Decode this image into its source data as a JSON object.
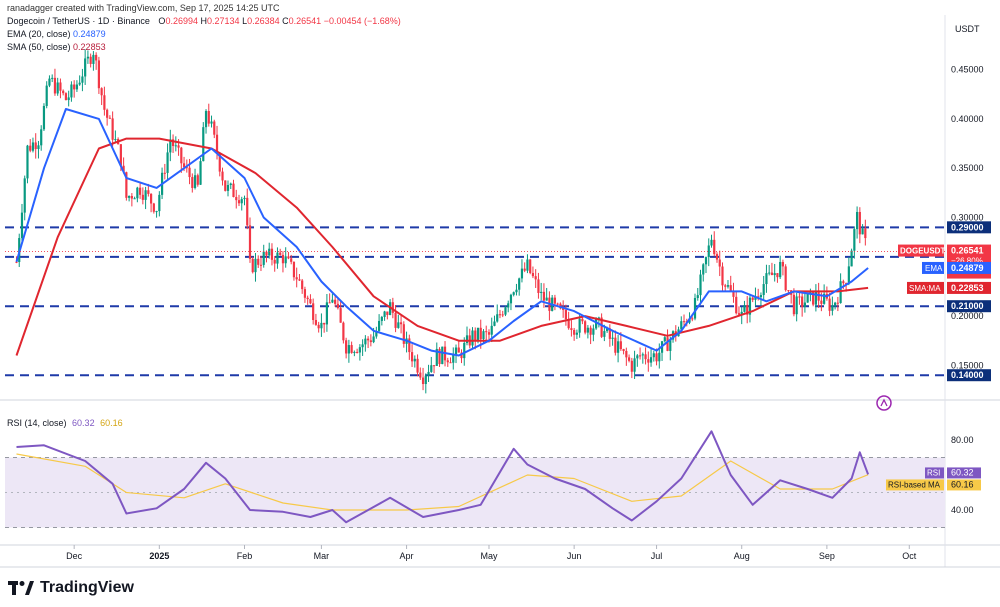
{
  "header": {
    "credit": "ranadagger created with TradingView.com, Sep 17, 2025 14:25 UTC",
    "symbol": "Dogecoin / TetherUS · 1D · Binance",
    "open_label": "O",
    "open": "0.26994",
    "high_label": "H",
    "high": "0.27134",
    "low_label": "L",
    "low": "0.26384",
    "close_label": "C",
    "close": "0.26541",
    "change": "−0.00454 (−1.68%)",
    "ema_label": "EMA (20, close)",
    "ema_value": "0.24879",
    "sma_label": "SMA (50, close)",
    "sma_value": "0.22853",
    "unit": "USDT"
  },
  "rsi_header": {
    "label": "RSI (14, close)",
    "rsi_value": "60.32",
    "ma_value": "60.16"
  },
  "footer": {
    "logo_text": "TradingView"
  },
  "colors": {
    "up": "#089981",
    "down": "#f23645",
    "ema": "#2962ff",
    "sma": "#e0262f",
    "rsi": "#7e57c2",
    "rsi_ma": "#f7c948",
    "dash": "#1f3aa8",
    "rsi_band": "#ede7f6"
  },
  "chart_data": [
    {
      "type": "candlestick",
      "title": "Dogecoin / TetherUS · 1D · Binance",
      "ylabel": "USDT",
      "ylim": [
        0.125,
        0.48
      ],
      "x_ticks": [
        "Dec",
        "2025",
        "Feb",
        "Mar",
        "Apr",
        "May",
        "Jun",
        "Jul",
        "Aug",
        "Sep",
        "Oct"
      ],
      "y_ticks": [
        "0.45000",
        "0.40000",
        "0.35000",
        "0.30000",
        "0.25000",
        "0.20000",
        "0.15000"
      ],
      "horizontal_levels": [
        {
          "value": 0.29,
          "label": "0.29000"
        },
        {
          "value": 0.26,
          "label": "0.26000"
        },
        {
          "value": 0.21,
          "label": "0.21000"
        },
        {
          "value": 0.14,
          "label": "0.14000"
        }
      ],
      "price_tags": [
        {
          "name": "DOGEUSDT",
          "value": "0.26541",
          "sub1": "−26.80%",
          "sub2": "09:34:06"
        },
        {
          "name": "EMA",
          "value": "0.24879"
        },
        {
          "name": "SMA:MA",
          "value": "0.22853"
        }
      ],
      "series": [
        {
          "name": "EMA (20, close)",
          "points": [
            [
              "2024-11-10",
              0.255
            ],
            [
              "2024-11-20",
              0.35
            ],
            [
              "2024-11-28",
              0.41
            ],
            [
              "2024-12-10",
              0.4
            ],
            [
              "2024-12-20",
              0.34
            ],
            [
              "2024-12-31",
              0.33
            ],
            [
              "2025-01-10",
              0.35
            ],
            [
              "2025-01-20",
              0.37
            ],
            [
              "2025-02-01",
              0.34
            ],
            [
              "2025-02-08",
              0.3
            ],
            [
              "2025-02-20",
              0.27
            ],
            [
              "2025-03-01",
              0.235
            ],
            [
              "2025-03-10",
              0.21
            ],
            [
              "2025-03-20",
              0.185
            ],
            [
              "2025-04-01",
              0.175
            ],
            [
              "2025-04-10",
              0.165
            ],
            [
              "2025-04-20",
              0.16
            ],
            [
              "2025-05-01",
              0.175
            ],
            [
              "2025-05-10",
              0.195
            ],
            [
              "2025-05-20",
              0.215
            ],
            [
              "2025-06-01",
              0.205
            ],
            [
              "2025-06-15",
              0.185
            ],
            [
              "2025-07-01",
              0.165
            ],
            [
              "2025-07-10",
              0.185
            ],
            [
              "2025-07-20",
              0.225
            ],
            [
              "2025-08-01",
              0.225
            ],
            [
              "2025-08-10",
              0.215
            ],
            [
              "2025-08-20",
              0.225
            ],
            [
              "2025-09-01",
              0.22
            ],
            [
              "2025-09-10",
              0.235
            ],
            [
              "2025-09-16",
              0.24879
            ]
          ]
        },
        {
          "name": "SMA (50, close)",
          "points": [
            [
              "2024-11-10",
              0.16
            ],
            [
              "2024-11-25",
              0.28
            ],
            [
              "2024-12-10",
              0.37
            ],
            [
              "2024-12-20",
              0.38
            ],
            [
              "2025-01-01",
              0.38
            ],
            [
              "2025-01-20",
              0.37
            ],
            [
              "2025-02-05",
              0.345
            ],
            [
              "2025-02-20",
              0.31
            ],
            [
              "2025-03-05",
              0.27
            ],
            [
              "2025-03-20",
              0.22
            ],
            [
              "2025-04-05",
              0.19
            ],
            [
              "2025-04-20",
              0.175
            ],
            [
              "2025-05-05",
              0.175
            ],
            [
              "2025-05-20",
              0.19
            ],
            [
              "2025-06-05",
              0.2
            ],
            [
              "2025-06-20",
              0.19
            ],
            [
              "2025-07-05",
              0.18
            ],
            [
              "2025-07-20",
              0.19
            ],
            [
              "2025-08-05",
              0.205
            ],
            [
              "2025-08-20",
              0.225
            ],
            [
              "2025-09-05",
              0.225
            ],
            [
              "2025-09-16",
              0.22853
            ]
          ]
        }
      ],
      "price_path": [
        [
          "2024-11-10",
          0.255
        ],
        [
          "2024-11-14",
          0.37
        ],
        [
          "2024-11-18",
          0.38
        ],
        [
          "2024-11-22",
          0.44
        ],
        [
          "2024-11-28",
          0.42
        ],
        [
          "2024-12-01",
          0.43
        ],
        [
          "2024-12-08",
          0.47
        ],
        [
          "2024-12-12",
          0.41
        ],
        [
          "2024-12-18",
          0.36
        ],
        [
          "2024-12-20",
          0.32
        ],
        [
          "2024-12-25",
          0.33
        ],
        [
          "2024-12-31",
          0.31
        ],
        [
          "2025-01-05",
          0.38
        ],
        [
          "2025-01-10",
          0.35
        ],
        [
          "2025-01-15",
          0.33
        ],
        [
          "2025-01-18",
          0.41
        ],
        [
          "2025-01-20",
          0.39
        ],
        [
          "2025-01-25",
          0.33
        ],
        [
          "2025-02-01",
          0.32
        ],
        [
          "2025-02-03",
          0.25
        ],
        [
          "2025-02-08",
          0.26
        ],
        [
          "2025-02-15",
          0.26
        ],
        [
          "2025-02-20",
          0.24
        ],
        [
          "2025-02-25",
          0.21
        ],
        [
          "2025-03-01",
          0.19
        ],
        [
          "2025-03-05",
          0.22
        ],
        [
          "2025-03-10",
          0.17
        ],
        [
          "2025-03-15",
          0.17
        ],
        [
          "2025-03-20",
          0.18
        ],
        [
          "2025-03-26",
          0.21
        ],
        [
          "2025-04-01",
          0.17
        ],
        [
          "2025-04-07",
          0.14
        ],
        [
          "2025-04-12",
          0.16
        ],
        [
          "2025-04-20",
          0.16
        ],
        [
          "2025-04-25",
          0.18
        ],
        [
          "2025-05-01",
          0.18
        ],
        [
          "2025-05-10",
          0.23
        ],
        [
          "2025-05-15",
          0.25
        ],
        [
          "2025-05-20",
          0.22
        ],
        [
          "2025-06-01",
          0.19
        ],
        [
          "2025-06-10",
          0.19
        ],
        [
          "2025-06-22",
          0.15
        ],
        [
          "2025-06-25",
          0.16
        ],
        [
          "2025-07-01",
          0.16
        ],
        [
          "2025-07-10",
          0.19
        ],
        [
          "2025-07-15",
          0.21
        ],
        [
          "2025-07-21",
          0.28
        ],
        [
          "2025-07-25",
          0.24
        ],
        [
          "2025-08-01",
          0.2
        ],
        [
          "2025-08-08",
          0.23
        ],
        [
          "2025-08-15",
          0.25
        ],
        [
          "2025-08-20",
          0.21
        ],
        [
          "2025-08-28",
          0.22
        ],
        [
          "2025-09-03",
          0.21
        ],
        [
          "2025-09-08",
          0.24
        ],
        [
          "2025-09-12",
          0.3
        ],
        [
          "2025-09-14",
          0.28
        ],
        [
          "2025-09-16",
          0.26541
        ]
      ]
    },
    {
      "type": "line",
      "title": "RSI (14, close)",
      "ylim": [
        20,
        100
      ],
      "y_ticks": [
        "80.00",
        "40.00"
      ],
      "bands": [
        70,
        30
      ],
      "mid": 50,
      "tags": [
        {
          "name": "RSI",
          "value": "60.32"
        },
        {
          "name": "RSI-based MA",
          "value": "60.16"
        }
      ],
      "series": [
        {
          "name": "RSI (14, close)",
          "points": [
            [
              "2024-11-10",
              76
            ],
            [
              "2024-11-20",
              77
            ],
            [
              "2024-12-05",
              68
            ],
            [
              "2024-12-15",
              55
            ],
            [
              "2024-12-20",
              38
            ],
            [
              "2024-12-31",
              41
            ],
            [
              "2025-01-10",
              52
            ],
            [
              "2025-01-18",
              67
            ],
            [
              "2025-01-25",
              58
            ],
            [
              "2025-02-03",
              40
            ],
            [
              "2025-02-15",
              39
            ],
            [
              "2025-02-25",
              36
            ],
            [
              "2025-03-05",
              40
            ],
            [
              "2025-03-10",
              33
            ],
            [
              "2025-03-26",
              47
            ],
            [
              "2025-04-07",
              36
            ],
            [
              "2025-04-20",
              40
            ],
            [
              "2025-04-28",
              43
            ],
            [
              "2025-05-10",
              75
            ],
            [
              "2025-05-15",
              66
            ],
            [
              "2025-05-25",
              58
            ],
            [
              "2025-06-05",
              52
            ],
            [
              "2025-06-15",
              41
            ],
            [
              "2025-06-22",
              34
            ],
            [
              "2025-07-01",
              45
            ],
            [
              "2025-07-10",
              58
            ],
            [
              "2025-07-21",
              85
            ],
            [
              "2025-07-28",
              60
            ],
            [
              "2025-08-05",
              43
            ],
            [
              "2025-08-15",
              57
            ],
            [
              "2025-08-25",
              52
            ],
            [
              "2025-09-03",
              47
            ],
            [
              "2025-09-10",
              58
            ],
            [
              "2025-09-13",
              73
            ],
            [
              "2025-09-16",
              60.32
            ]
          ]
        },
        {
          "name": "RSI-based MA",
          "points": [
            [
              "2024-11-10",
              72
            ],
            [
              "2024-12-05",
              65
            ],
            [
              "2024-12-20",
              50
            ],
            [
              "2025-01-10",
              47
            ],
            [
              "2025-01-25",
              55
            ],
            [
              "2025-02-15",
              44
            ],
            [
              "2025-03-05",
              40
            ],
            [
              "2025-04-01",
              40
            ],
            [
              "2025-04-20",
              42
            ],
            [
              "2025-05-15",
              60
            ],
            [
              "2025-06-01",
              58
            ],
            [
              "2025-06-22",
              45
            ],
            [
              "2025-07-10",
              48
            ],
            [
              "2025-07-28",
              68
            ],
            [
              "2025-08-15",
              52
            ],
            [
              "2025-09-03",
              52
            ],
            [
              "2025-09-16",
              60.16
            ]
          ]
        }
      ]
    }
  ]
}
